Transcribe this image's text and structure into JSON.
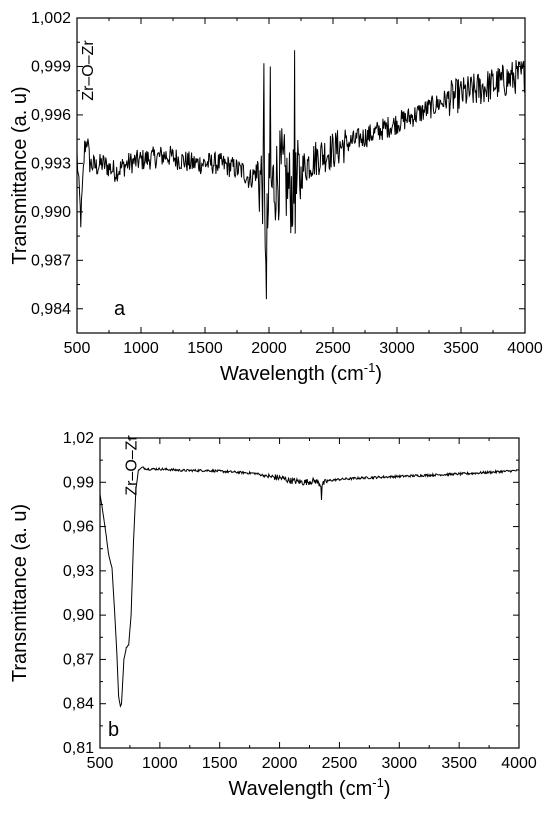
{
  "chart_data": [
    {
      "type": "line",
      "panel_label": "a",
      "xlabel": "Wavelength (cm",
      "xlabel_superscript": "-1",
      "xlabel_close": ")",
      "ylabel": "Transmittance (a. u)",
      "xlim": [
        500,
        4000
      ],
      "ylim": [
        0.9825,
        1.002
      ],
      "x_ticks": [
        500,
        1000,
        1500,
        2000,
        2500,
        3000,
        3500,
        4000
      ],
      "x_tick_labels": [
        "500",
        "1000",
        "1500",
        "2000",
        "2500",
        "3000",
        "3500",
        "4000"
      ],
      "y_ticks": [
        0.984,
        0.987,
        0.99,
        0.993,
        0.996,
        0.999,
        1.002
      ],
      "y_tick_labels": [
        "0,984",
        "0,987",
        "0,990",
        "0,993",
        "0,996",
        "0,999",
        "1,002"
      ],
      "annotation": {
        "text": "Zr–O–Zr",
        "x": 580,
        "y": 0.9975
      },
      "grid": false,
      "noise": "high",
      "series": [
        {
          "x": [
            500,
            530,
            560,
            580,
            600,
            650,
            700,
            800,
            900,
            1000,
            1200,
            1400,
            1600,
            1700,
            1800,
            1850,
            1900,
            1950,
            1980,
            2000,
            2050,
            2100,
            2150,
            2200,
            2250,
            2300,
            2400,
            2500,
            2600,
            2800,
            3000,
            3200,
            3400,
            3600,
            3800,
            3900,
            4000
          ],
          "y": [
            0.9935,
            0.9895,
            0.994,
            0.9945,
            0.993,
            0.9928,
            0.993,
            0.9925,
            0.993,
            0.9932,
            0.9935,
            0.993,
            0.993,
            0.9928,
            0.9925,
            0.992,
            0.9925,
            0.9918,
            0.988,
            0.991,
            0.992,
            0.9925,
            0.9915,
            0.991,
            0.9925,
            0.993,
            0.9935,
            0.9938,
            0.9942,
            0.9948,
            0.9955,
            0.9962,
            0.997,
            0.9975,
            0.998,
            0.9983,
            0.9985
          ]
        }
      ]
    },
    {
      "type": "line",
      "panel_label": "b",
      "xlabel": "Wavelength (cm",
      "xlabel_superscript": "-1",
      "xlabel_close": ")",
      "ylabel": "Transmittance (a. u)",
      "xlim": [
        500,
        4000
      ],
      "ylim": [
        0.81,
        1.02
      ],
      "x_ticks": [
        500,
        1000,
        1500,
        2000,
        2500,
        3000,
        3500,
        4000
      ],
      "x_tick_labels": [
        "500",
        "1000",
        "1500",
        "2000",
        "2500",
        "3000",
        "3500",
        "4000"
      ],
      "y_ticks": [
        0.81,
        0.84,
        0.87,
        0.9,
        0.93,
        0.96,
        0.99,
        1.02
      ],
      "y_tick_labels": [
        "0,81",
        "0,84",
        "0,87",
        "0,90",
        "0,93",
        "0,96",
        "0,99",
        "1,02"
      ],
      "annotation": {
        "text": "Zr–O–Zr",
        "x": 720,
        "y": 0.985
      },
      "grid": false,
      "noise": "low",
      "series": [
        {
          "x": [
            500,
            520,
            550,
            570,
            590,
            600,
            620,
            640,
            655,
            670,
            680,
            690,
            700,
            720,
            740,
            760,
            780,
            800,
            820,
            850,
            900,
            1000,
            1200,
            1400,
            1600,
            1800,
            1900,
            2000,
            2100,
            2200,
            2300,
            2350,
            2400,
            2500,
            2700,
            3000,
            3300,
            3600,
            3800,
            4000
          ],
          "y": [
            0.982,
            0.972,
            0.955,
            0.942,
            0.935,
            0.932,
            0.905,
            0.875,
            0.845,
            0.838,
            0.84,
            0.855,
            0.87,
            0.878,
            0.88,
            0.9,
            0.95,
            0.985,
            0.998,
            1.0,
            0.999,
            0.999,
            0.998,
            0.998,
            0.997,
            0.996,
            0.994,
            0.993,
            0.991,
            0.99,
            0.991,
            0.988,
            0.991,
            0.992,
            0.993,
            0.994,
            0.995,
            0.996,
            0.997,
            0.998
          ]
        }
      ]
    }
  ]
}
